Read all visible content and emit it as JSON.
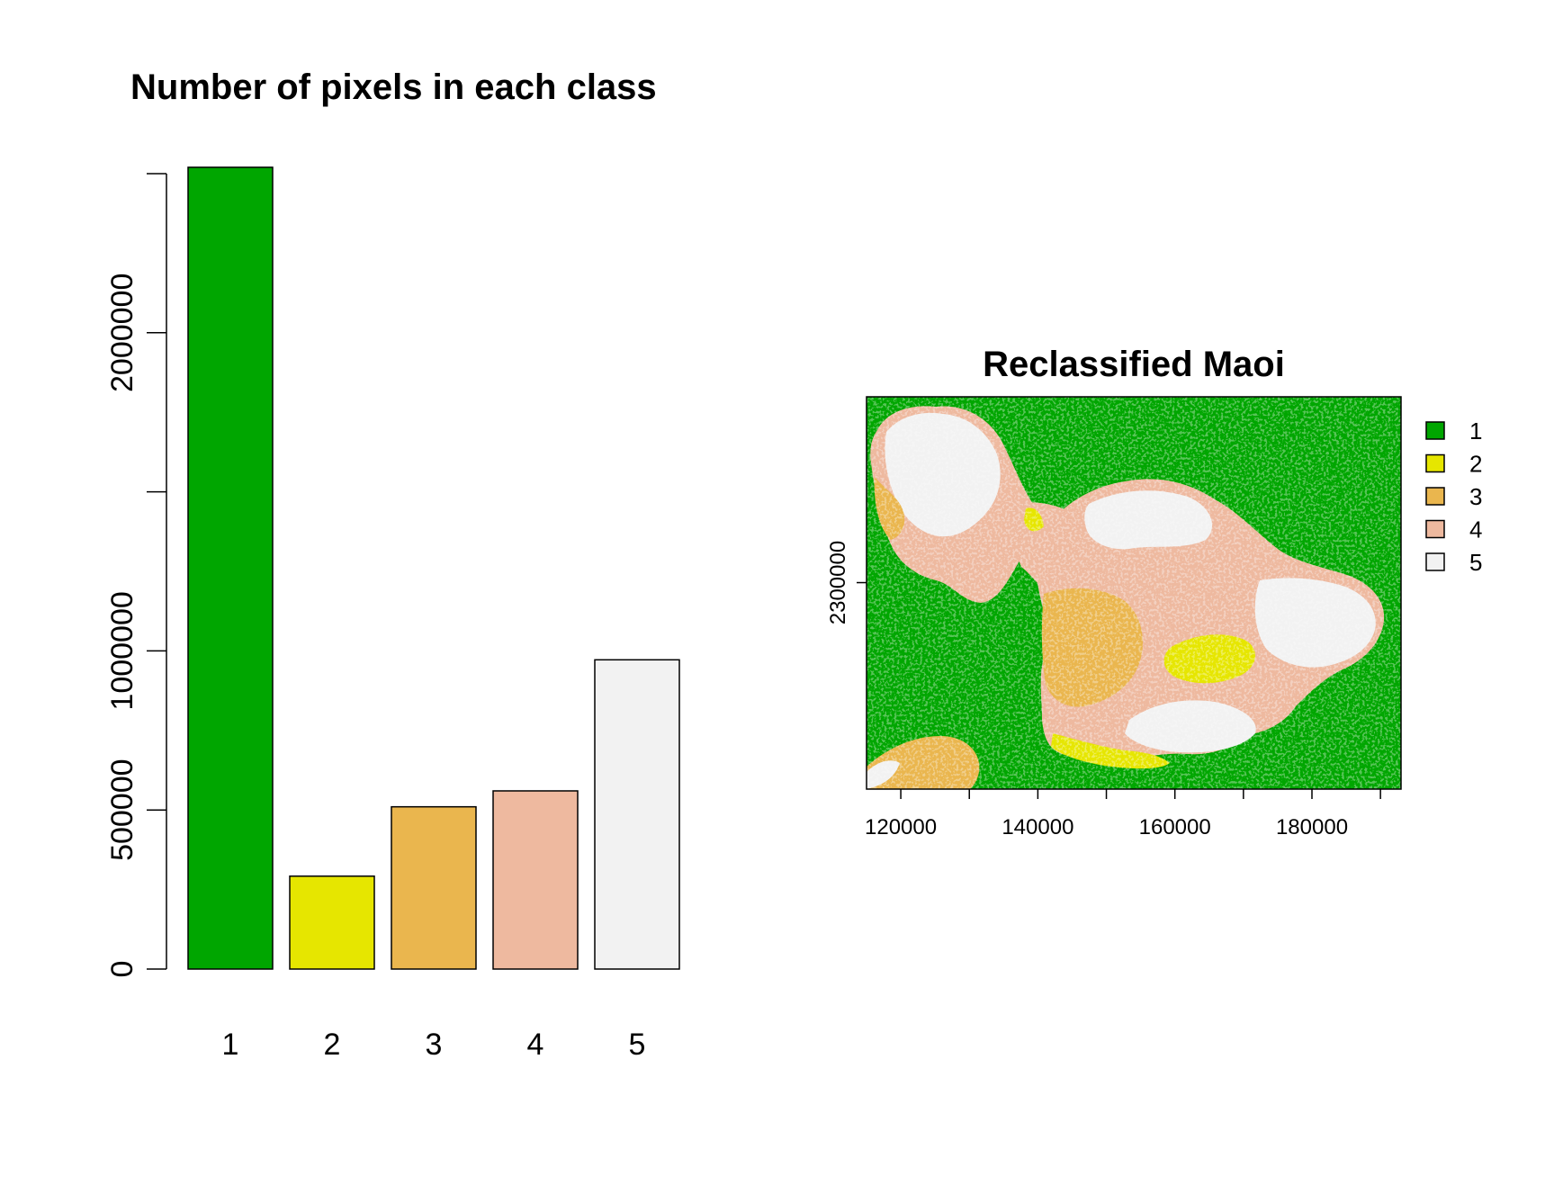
{
  "chart_data": [
    {
      "type": "bar",
      "title": "Number of pixels in each class",
      "categories": [
        "1",
        "2",
        "3",
        "4",
        "5"
      ],
      "values": [
        2520000,
        292000,
        510000,
        560000,
        972000
      ],
      "colors": [
        "#00A600",
        "#E6E600",
        "#EAB64E",
        "#EEB99F",
        "#F2F2F2"
      ],
      "ylim": [
        0,
        2500000
      ],
      "yticks": [
        0,
        500000,
        1000000,
        1500000,
        2000000,
        2500000
      ],
      "ytick_labels": [
        "0",
        "500000",
        "1000000",
        "",
        "2000000",
        ""
      ],
      "xlabel": "",
      "ylabel": ""
    },
    {
      "type": "heatmap",
      "title": "Reclassified Maoi",
      "xlim": [
        115000,
        193000
      ],
      "ylim": [
        2270000,
        2327000
      ],
      "xticks": [
        120000,
        130000,
        140000,
        150000,
        160000,
        170000,
        180000,
        190000
      ],
      "xtick_labels": [
        "120000",
        "",
        "140000",
        "",
        "160000",
        "",
        "180000",
        ""
      ],
      "yticks": [
        2300000
      ],
      "ytick_labels": [
        "2300000"
      ],
      "legend": {
        "placement": "right",
        "entries": [
          {
            "label": "1",
            "color": "#00A600"
          },
          {
            "label": "2",
            "color": "#E6E600"
          },
          {
            "label": "3",
            "color": "#EAB64E"
          },
          {
            "label": "4",
            "color": "#EEB99F"
          },
          {
            "label": "5",
            "color": "#F2F2F2"
          }
        ]
      },
      "background_class": "1"
    }
  ]
}
